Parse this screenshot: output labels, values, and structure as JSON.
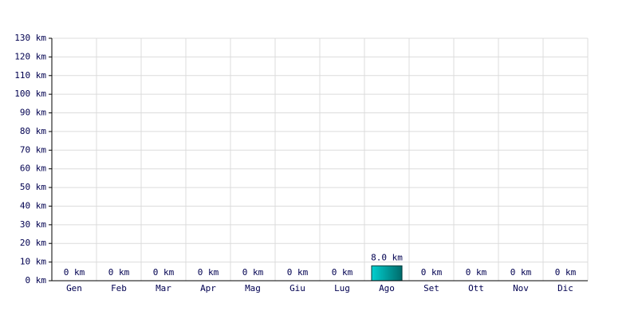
{
  "chart_data": {
    "type": "bar",
    "categories": [
      "Gen",
      "Feb",
      "Mar",
      "Apr",
      "Mag",
      "Giu",
      "Lug",
      "Ago",
      "Set",
      "Ott",
      "Nov",
      "Dic"
    ],
    "values": [
      0,
      0,
      0,
      0,
      0,
      0,
      0,
      8.0,
      0,
      0,
      0,
      0
    ],
    "value_labels": [
      "0 km",
      "0 km",
      "0 km",
      "0 km",
      "0 km",
      "0 km",
      "0 km",
      "8.0 km",
      "0 km",
      "0 km",
      "0 km",
      "0 km"
    ],
    "color": "#00d0d0",
    "ylim": [
      0,
      130
    ],
    "yticks": [
      {
        "value": 0,
        "label": "0 km"
      },
      {
        "value": 10,
        "label": "10 km"
      },
      {
        "value": 20,
        "label": "20 km"
      },
      {
        "value": 30,
        "label": "30 km"
      },
      {
        "value": 40,
        "label": "40 km"
      },
      {
        "value": 50,
        "label": "50 km"
      },
      {
        "value": 60,
        "label": "60 km"
      },
      {
        "value": 70,
        "label": "70 km"
      },
      {
        "value": 80,
        "label": "80 km"
      },
      {
        "value": 90,
        "label": "90 km"
      },
      {
        "value": 100,
        "label": "100 km"
      },
      {
        "value": 110,
        "label": "110 km"
      },
      {
        "value": 120,
        "label": "120 km"
      },
      {
        "value": 130,
        "label": "130 km"
      }
    ],
    "grid": true
  }
}
